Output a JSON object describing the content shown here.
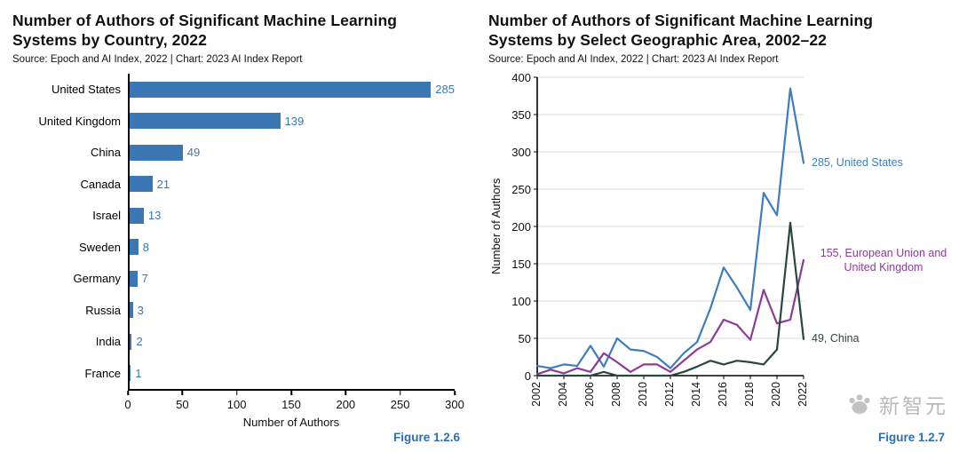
{
  "watermark": {
    "text": "新智元"
  },
  "chart_data": [
    {
      "type": "bar",
      "orientation": "horizontal",
      "title": "Number of Authors of Significant Machine Learning Systems by Country, 2022",
      "source": "Source: Epoch and AI Index, 2022 | Chart: 2023 AI Index Report",
      "figure_label": "Figure 1.2.6",
      "xlabel": "Number of Authors",
      "xlim": [
        0,
        300
      ],
      "xticks": [
        0,
        50,
        100,
        150,
        200,
        250,
        300
      ],
      "bar_color": "#3b77b4",
      "categories": [
        "United States",
        "United Kingdom",
        "China",
        "Canada",
        "Israel",
        "Sweden",
        "Germany",
        "Russia",
        "India",
        "France"
      ],
      "values": [
        285,
        139,
        49,
        21,
        13,
        8,
        7,
        3,
        2,
        1
      ]
    },
    {
      "type": "line",
      "title": "Number of Authors of Significant Machine Learning Systems by Select Geographic Area, 2002–22",
      "source": "Source: Epoch and AI Index, 2022 | Chart: 2023 AI Index Report",
      "figure_label": "Figure 1.2.7",
      "ylabel": "Number of Authors",
      "ylim": [
        0,
        400
      ],
      "yticks": [
        0,
        50,
        100,
        150,
        200,
        250,
        300,
        350,
        400
      ],
      "grid": true,
      "legend_position": "right-annotations",
      "x": [
        2002,
        2003,
        2004,
        2005,
        2006,
        2007,
        2008,
        2009,
        2010,
        2011,
        2012,
        2013,
        2014,
        2015,
        2016,
        2017,
        2018,
        2019,
        2020,
        2021,
        2022
      ],
      "xtick_labels": [
        "2002",
        "2004",
        "2006",
        "2008",
        "2010",
        "2012",
        "2014",
        "2016",
        "2018",
        "2020",
        "2022"
      ],
      "series": [
        {
          "name": "United States",
          "color": "#3e7dbd",
          "annotation": "285, United States",
          "values": [
            13,
            10,
            15,
            13,
            40,
            12,
            50,
            35,
            33,
            25,
            10,
            30,
            45,
            90,
            145,
            118,
            88,
            245,
            215,
            385,
            285
          ]
        },
        {
          "name": "European Union and United Kingdom",
          "color": "#8e3a98",
          "annotation": "155, European Union and United Kingdom",
          "values": [
            2,
            8,
            3,
            10,
            5,
            30,
            18,
            5,
            15,
            15,
            5,
            20,
            35,
            45,
            75,
            68,
            48,
            115,
            70,
            75,
            155
          ]
        },
        {
          "name": "China",
          "color": "#2b463f",
          "annotation": "49, China",
          "values": [
            0,
            0,
            0,
            0,
            0,
            5,
            0,
            0,
            0,
            0,
            0,
            5,
            12,
            20,
            15,
            20,
            18,
            15,
            35,
            205,
            49
          ]
        }
      ]
    }
  ]
}
